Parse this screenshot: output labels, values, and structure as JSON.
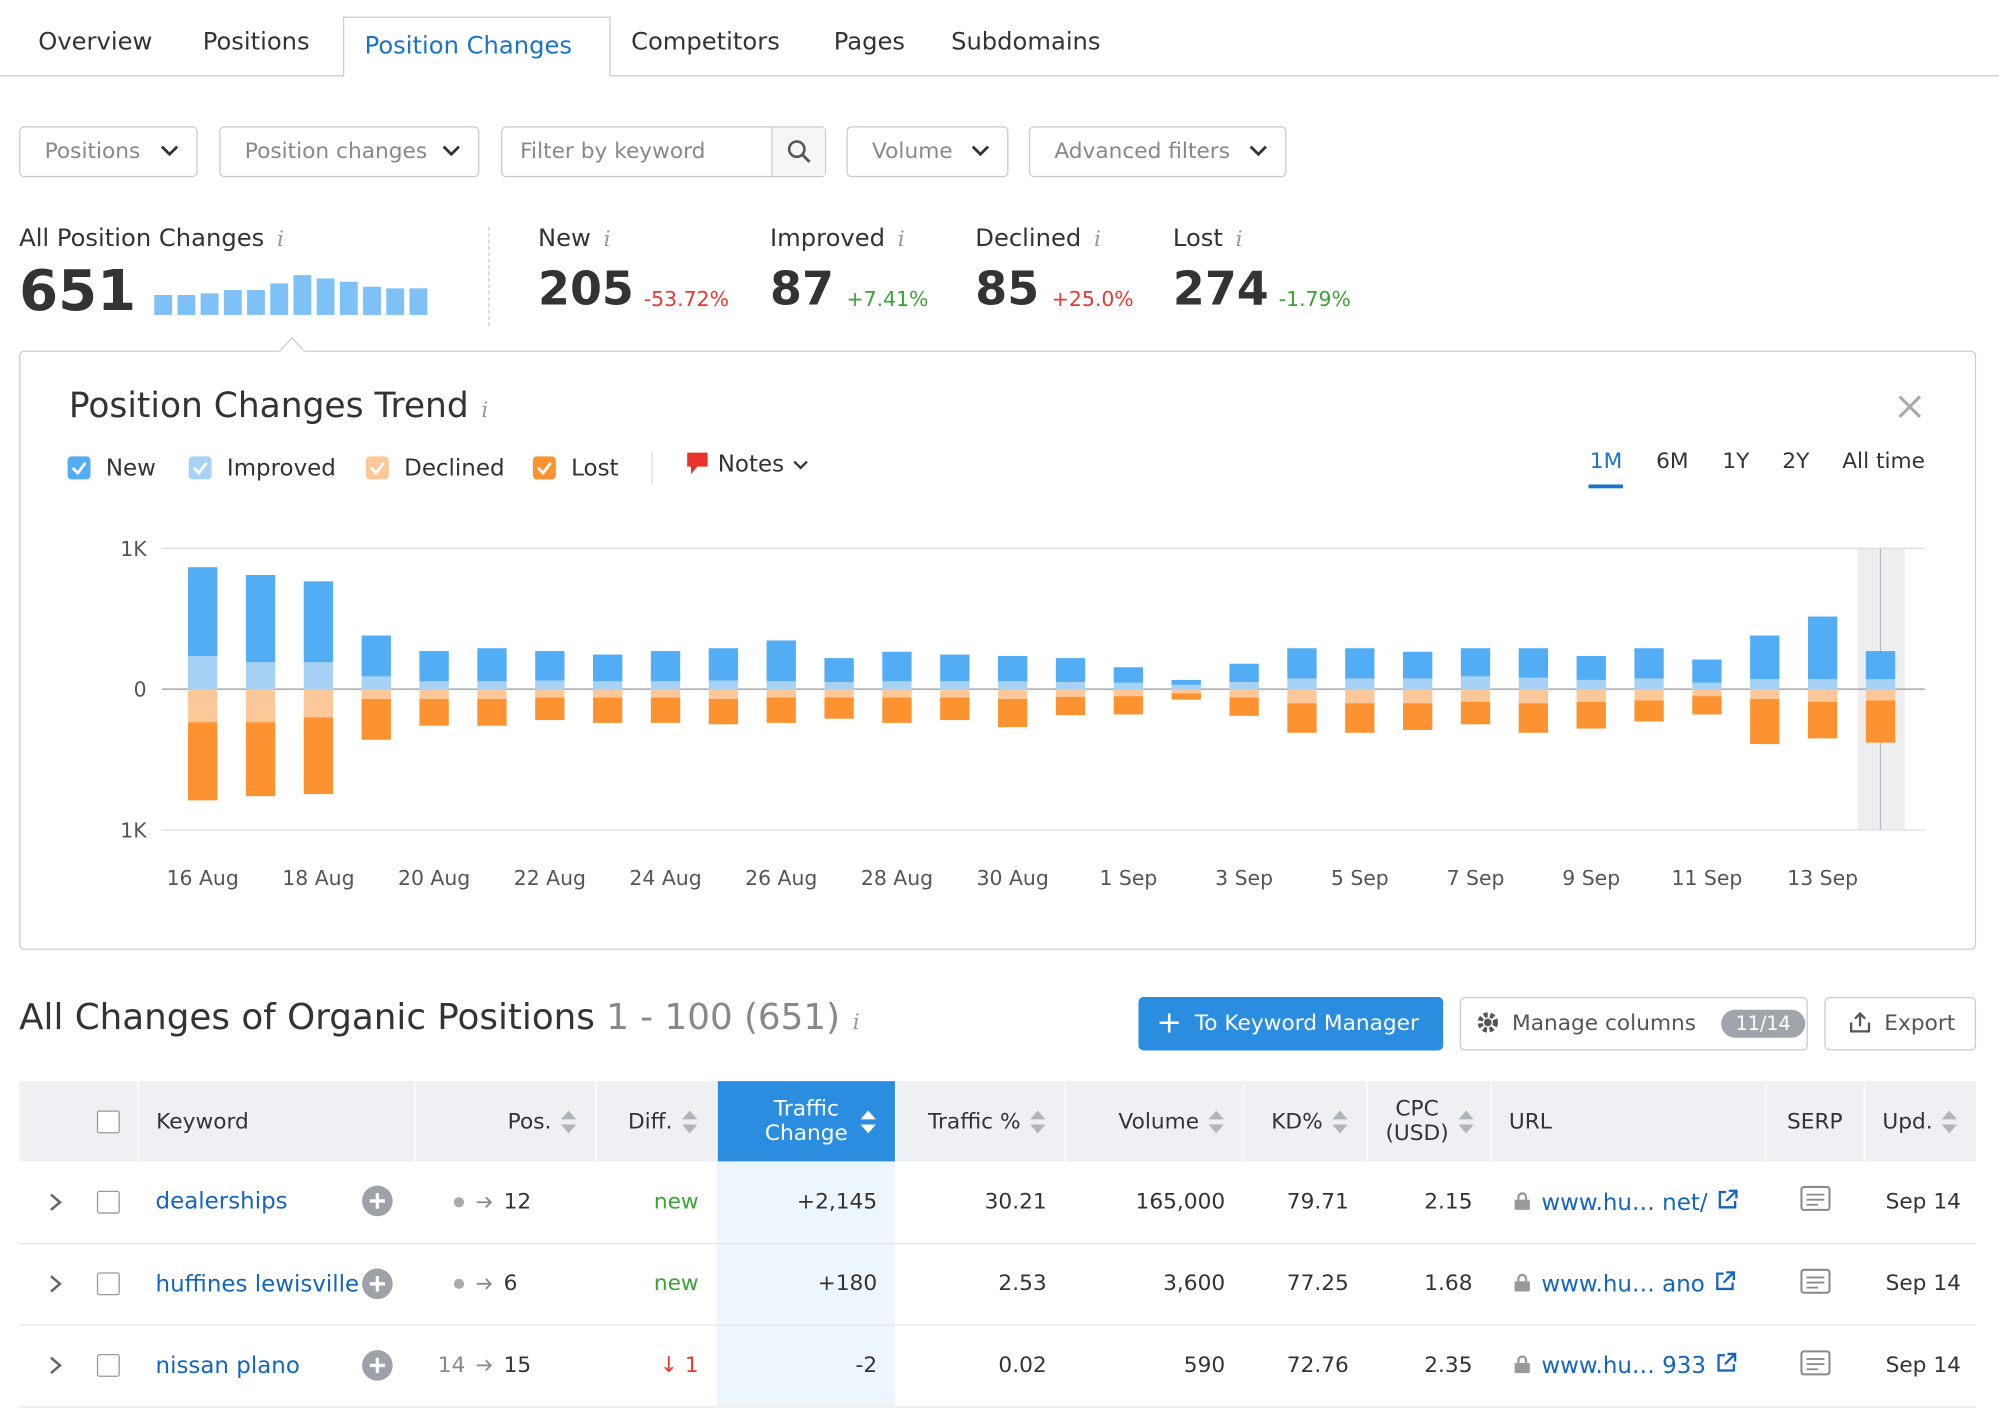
{
  "tabs": [
    "Overview",
    "Positions",
    "Position Changes",
    "Competitors",
    "Pages",
    "Subdomains"
  ],
  "filters": [
    "Positions",
    "Position changes",
    "Filter by keyword",
    "Volume",
    "Advanced filters"
  ],
  "summary": {
    "label": "All Position Changes",
    "value": 651,
    "trend": [
      12,
      12,
      13,
      15,
      15,
      19,
      24,
      22,
      20,
      17,
      16,
      16
    ]
  },
  "stats": [
    {
      "label": "New",
      "value": 205,
      "change": "-53.72%",
      "color": "#e53935"
    },
    {
      "label": "Improved",
      "value": 87,
      "change": "+7.41%",
      "color": "#3aa335"
    },
    {
      "label": "Declined",
      "value": 85,
      "change": "+25.0%",
      "color": "#e53935"
    },
    {
      "label": "Lost",
      "value": 274,
      "change": "-1.79%",
      "color": "#3aa335"
    }
  ],
  "chart_data": {
    "type": "bar",
    "stacked": true,
    "title": "Position Changes Trend",
    "notes": "Notes",
    "ranges": [
      "1M",
      "6M",
      "1Y",
      "2Y",
      "All time"
    ],
    "categories": [
      "16 Aug",
      null,
      "18 Aug",
      null,
      "20 Aug",
      null,
      "22 Aug",
      null,
      "24 Aug",
      null,
      "26 Aug",
      null,
      "28 Aug",
      null,
      "30 Aug",
      null,
      "1 Sep",
      null,
      "3 Sep",
      null,
      "5 Sep",
      null,
      "7 Sep",
      null,
      "9 Sep",
      null,
      "11 Sep",
      null,
      "13 Sep",
      null
    ],
    "series": [
      {
        "name": "New",
        "color": "#52adf4",
        "values": [
          630,
          620,
          575,
          290,
          215,
          235,
          210,
          190,
          215,
          230,
          290,
          170,
          210,
          190,
          180,
          170,
          110,
          35,
          130,
          215,
          215,
          190,
          200,
          210,
          170,
          215,
          165,
          310,
          445,
          200
        ]
      },
      {
        "name": "Improved",
        "color": "#a8d2f5",
        "values": [
          235,
          190,
          190,
          90,
          55,
          55,
          60,
          55,
          55,
          60,
          55,
          50,
          55,
          55,
          55,
          50,
          45,
          30,
          50,
          75,
          75,
          75,
          90,
          80,
          65,
          75,
          45,
          70,
          70,
          70
        ]
      },
      {
        "name": "Declined",
        "color": "#fdc899",
        "values": [
          -235,
          -235,
          -200,
          -70,
          -70,
          -70,
          -60,
          -60,
          -60,
          -70,
          -60,
          -60,
          -60,
          -60,
          -70,
          -55,
          -50,
          -30,
          -60,
          -100,
          -100,
          -100,
          -90,
          -100,
          -90,
          -80,
          -50,
          -70,
          -90,
          -80
        ]
      },
      {
        "name": "Lost",
        "color": "#fd9230",
        "values": [
          -555,
          -525,
          -545,
          -290,
          -190,
          -190,
          -160,
          -180,
          -180,
          -180,
          -180,
          -150,
          -180,
          -160,
          -200,
          -130,
          -130,
          -45,
          -130,
          -210,
          -210,
          -190,
          -160,
          -210,
          -190,
          -150,
          -130,
          -320,
          -260,
          -300
        ]
      }
    ],
    "ylim": [
      -1000,
      1000
    ],
    "yticks": [
      {
        "value": -1000,
        "label": "1K"
      },
      0,
      {
        "value": 1000,
        "label": "1K"
      }
    ],
    "grid": true
  },
  "table": {
    "title": "All Changes of Organic Positions",
    "range": "1 - 100 (651)",
    "buttons": {
      "keyword_manager": "To Keyword Manager",
      "manage_columns": "Manage columns",
      "columns_count": "11/14",
      "export": "Export"
    },
    "columns": [
      "Keyword",
      "Pos.",
      "Diff.",
      "Traffic Change",
      "Traffic %",
      "Volume",
      "KD%",
      "CPC (USD)",
      "URL",
      "SERP",
      "Upd."
    ],
    "rows": [
      [
        "dealerships",
        null,
        "12",
        "new",
        "+2,145",
        "30.21",
        "165,000",
        "79.71",
        "2.15",
        "www.hu… net/",
        "Sep 14"
      ],
      [
        "huffines lewisville",
        null,
        "6",
        "new",
        "+180",
        "2.53",
        "3,600",
        "77.25",
        "1.68",
        "www.hu… ano",
        "Sep 14"
      ],
      [
        "nissan plano",
        "14",
        "15",
        "↓ 1",
        "-2",
        "0.02",
        "590",
        "72.76",
        "2.35",
        "www.hu… 933",
        "Sep 14"
      ]
    ]
  }
}
